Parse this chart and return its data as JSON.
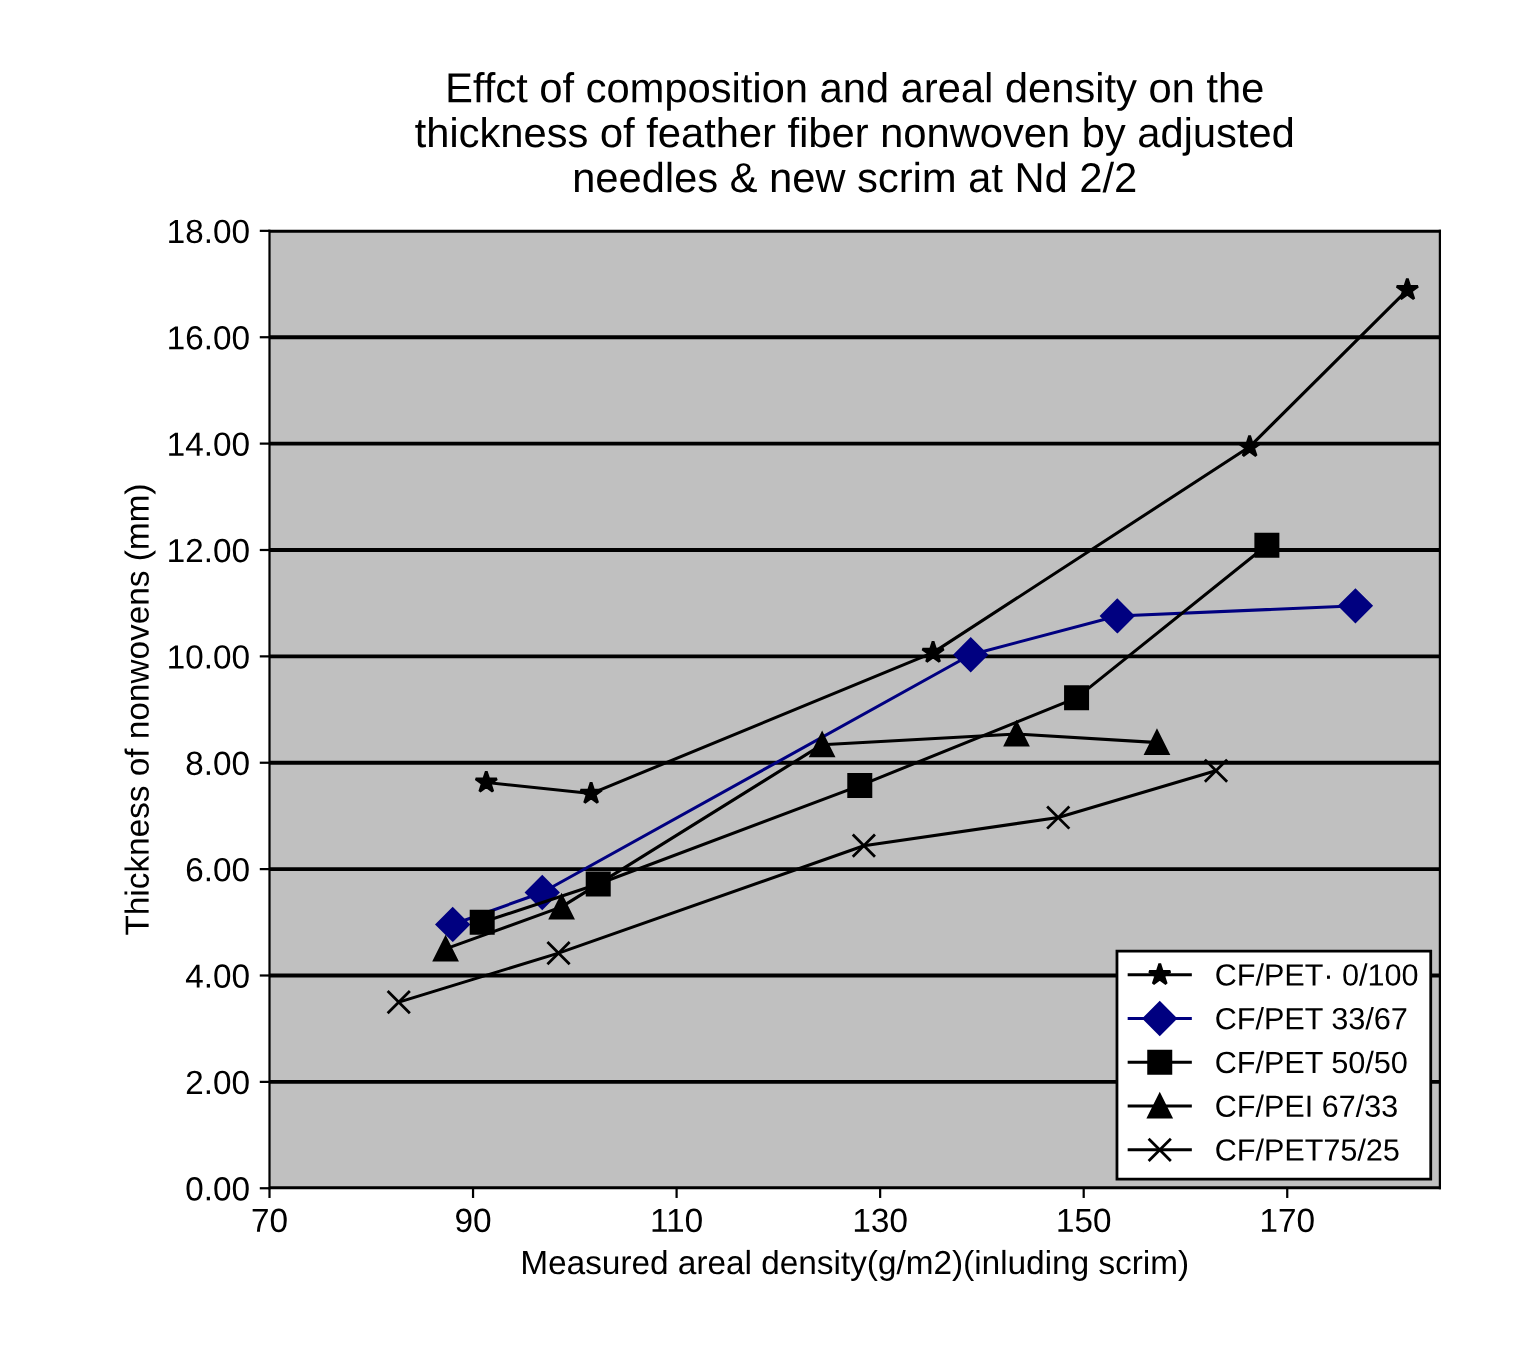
{
  "chart_data": {
    "type": "line",
    "title": "Effct of composition and areal density on the\nthickness of feather fiber nonwoven by adjusted\nneedles & new scrim at Nd 2/2",
    "xlabel": "Measured areal density(g/m2)(inluding scrim)",
    "ylabel": "Thickness of nonwovens (mm)",
    "xlim": [
      70,
      185
    ],
    "xticks": [
      70,
      90,
      110,
      130,
      150,
      170
    ],
    "ylim": [
      0,
      18
    ],
    "yticks": [
      {
        "value": 0,
        "label": "0.00"
      },
      {
        "value": 2,
        "label": "2.00"
      },
      {
        "value": 4,
        "label": "4.00"
      },
      {
        "value": 6,
        "label": "6.00"
      },
      {
        "value": 8,
        "label": "8.00"
      },
      {
        "value": 10,
        "label": "10.00"
      },
      {
        "value": 12,
        "label": "12.00"
      },
      {
        "value": 14,
        "label": "14.00"
      },
      {
        "value": 16,
        "label": "16.00"
      },
      {
        "value": 18,
        "label": "18.00"
      }
    ],
    "grid": "y",
    "legend": "bottom right",
    "series": [
      {
        "name": "CF/PET· 0/100",
        "color": "#000000",
        "marker": "star",
        "x": [
          91.3,
          101.6,
          135.2,
          166.3,
          181.8
        ],
        "values": [
          7.63,
          7.42,
          10.07,
          13.94,
          16.89
        ]
      },
      {
        "name": "CF/PET 33/67",
        "color": "#000080",
        "marker": "diamond",
        "x": [
          88.0,
          96.8,
          138.9,
          153.3,
          176.7
        ],
        "values": [
          4.96,
          5.56,
          10.03,
          10.76,
          10.95
        ]
      },
      {
        "name": "CF/PET 50/50",
        "color": "#000000",
        "marker": "square",
        "x": [
          90.9,
          102.3,
          128.0,
          149.3,
          168.0
        ],
        "values": [
          5.0,
          5.72,
          7.57,
          9.22,
          12.09
        ]
      },
      {
        "name": "CF/PEI 67/33",
        "color": "#000000",
        "marker": "triangle",
        "x": [
          87.3,
          98.7,
          124.3,
          143.4,
          157.2
        ],
        "values": [
          4.5,
          5.29,
          8.34,
          8.54,
          8.38
        ]
      },
      {
        "name": "CF/PET75/25",
        "color": "#000000",
        "marker": "cross",
        "x": [
          82.7,
          98.4,
          128.4,
          147.5,
          163.0
        ],
        "values": [
          3.5,
          4.42,
          6.44,
          6.97,
          7.85
        ]
      }
    ]
  }
}
